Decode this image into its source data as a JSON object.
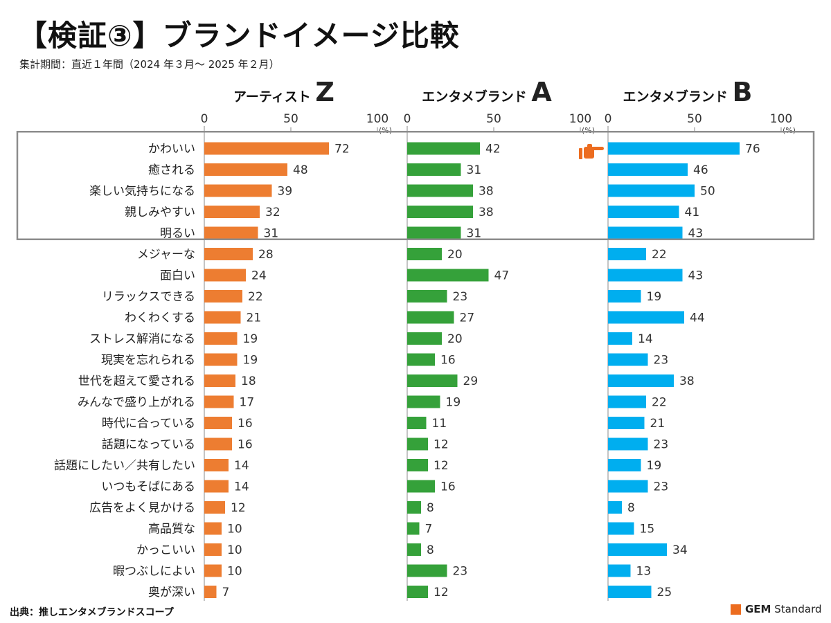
{
  "header": {
    "title": "【検証③】ブランドイメージ比較",
    "period": "集計期間：直近１年間（2024 年３月～ 2025 年２月）"
  },
  "footer": {
    "source": "出典：推しエンタメブランドスコープ",
    "logo_bold": "GEM",
    "logo_rest": " Standard",
    "logo_color": "#EC6C1F"
  },
  "highlight": {
    "box_color": "#8C8C8C",
    "pointer_icon": "pointing-hand-icon",
    "pointer_color": "#EC6C1F"
  },
  "chart_data": {
    "type": "bar",
    "orientation": "horizontal",
    "categories": [
      "かわいい",
      "癒される",
      "楽しい気持ちになる",
      "親しみやすい",
      "明るい",
      "メジャーな",
      "面白い",
      "リラックスできる",
      "わくわくする",
      "ストレス解消になる",
      "現実を忘れられる",
      "世代を超えて愛される",
      "みんなで盛り上がれる",
      "時代に合っている",
      "話題になっている",
      "話題にしたい／共有したい",
      "いつもそばにある",
      "広告をよく見かける",
      "高品質な",
      "かっこいい",
      "暇つぶしによい",
      "奥が深い"
    ],
    "xlim": [
      0,
      100
    ],
    "ticks": [
      "0",
      "50",
      "100"
    ],
    "unit": "(%)",
    "highlighted_categories": [
      "かわいい",
      "癒される",
      "楽しい気持ちになる",
      "親しみやすい",
      "明るい"
    ],
    "series": [
      {
        "name_prefix": "アーティスト",
        "name_suffix": "Z",
        "color": "#ED7D31",
        "values": [
          72,
          48,
          39,
          32,
          31,
          28,
          24,
          22,
          21,
          19,
          19,
          18,
          17,
          16,
          16,
          14,
          14,
          12,
          10,
          10,
          10,
          7
        ]
      },
      {
        "name_prefix": "エンタメブランド",
        "name_suffix": "A",
        "color": "#35A13A",
        "values": [
          42,
          31,
          38,
          38,
          31,
          20,
          47,
          23,
          27,
          20,
          16,
          29,
          19,
          11,
          12,
          12,
          16,
          8,
          7,
          8,
          23,
          12
        ]
      },
      {
        "name_prefix": "エンタメブランド",
        "name_suffix": "B",
        "color": "#00AEEF",
        "values": [
          76,
          46,
          50,
          41,
          43,
          22,
          43,
          19,
          44,
          14,
          23,
          38,
          22,
          21,
          23,
          19,
          23,
          8,
          15,
          34,
          13,
          25
        ]
      }
    ]
  }
}
